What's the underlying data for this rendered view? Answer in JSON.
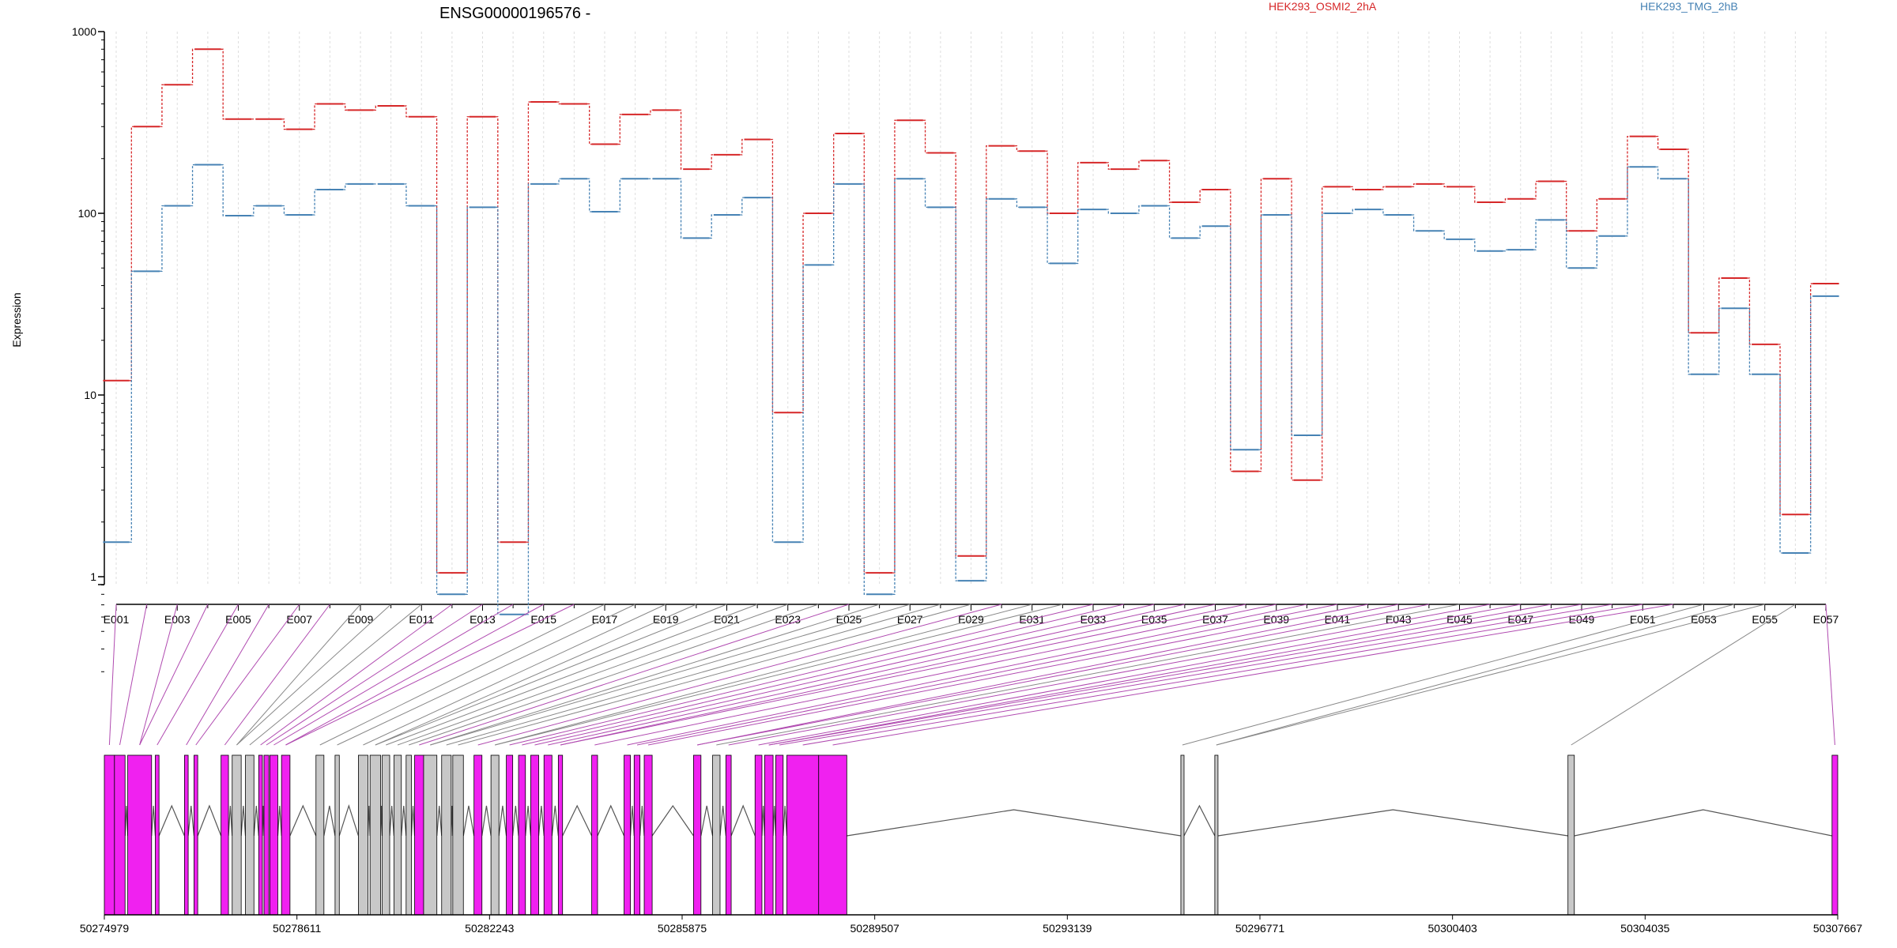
{
  "chart_data": {
    "type": "line",
    "title": "ENSG00000196576 -",
    "ylabel": "Expression",
    "yscale": "log",
    "ylim": [
      0.3,
      1000
    ],
    "yticks": [
      "1",
      "10",
      "100",
      "1000"
    ],
    "grid": "vertical",
    "colors": {
      "series_a": "#d62728",
      "series_b": "#4682b4",
      "exon_expressed": "#f021f0",
      "exon_other": "#c8c8c8"
    },
    "exon_labels": [
      "E001",
      "E003",
      "E005",
      "E007",
      "E009",
      "E011",
      "E013",
      "E015",
      "E017",
      "E019",
      "E021",
      "E023",
      "E025",
      "E027",
      "E029",
      "E031",
      "E033",
      "E035",
      "E037",
      "E039",
      "E041",
      "E043",
      "E045",
      "E047",
      "E049",
      "E051",
      "E053",
      "E055",
      "E057"
    ],
    "series": [
      {
        "name": "HEK293_OSMI2_2hA",
        "values": [
          12,
          300,
          510,
          800,
          330,
          330,
          290,
          400,
          370,
          390,
          340,
          1.05,
          340,
          1.55,
          410,
          400,
          240,
          350,
          370,
          175,
          210,
          255,
          8,
          100,
          275,
          1.05,
          325,
          215,
          1.3,
          235,
          220,
          100,
          190,
          175,
          195,
          115,
          135,
          3.8,
          155,
          3.4,
          140,
          135,
          140,
          145,
          140,
          115,
          120,
          150,
          80,
          120,
          265,
          225,
          22,
          44,
          19,
          2.2,
          41
        ]
      },
      {
        "name": "HEK293_TMG_2hB",
        "values": [
          1.55,
          48,
          110,
          185,
          97,
          110,
          98,
          135,
          145,
          145,
          110,
          0.8,
          108,
          0.62,
          145,
          155,
          102,
          155,
          155,
          73,
          98,
          122,
          1.55,
          52,
          145,
          0.8,
          155,
          108,
          0.95,
          120,
          108,
          53,
          105,
          100,
          110,
          73,
          85,
          5,
          98,
          6,
          100,
          105,
          98,
          80,
          72,
          62,
          63,
          92,
          50,
          75,
          180,
          155,
          13,
          30,
          13,
          1.35,
          35
        ]
      }
    ],
    "genomic_axis": {
      "ticks": [
        "50274979",
        "50278611",
        "50282243",
        "50285875",
        "50289507",
        "50293139",
        "50296771",
        "50300403",
        "50304035",
        "50307667"
      ]
    }
  }
}
